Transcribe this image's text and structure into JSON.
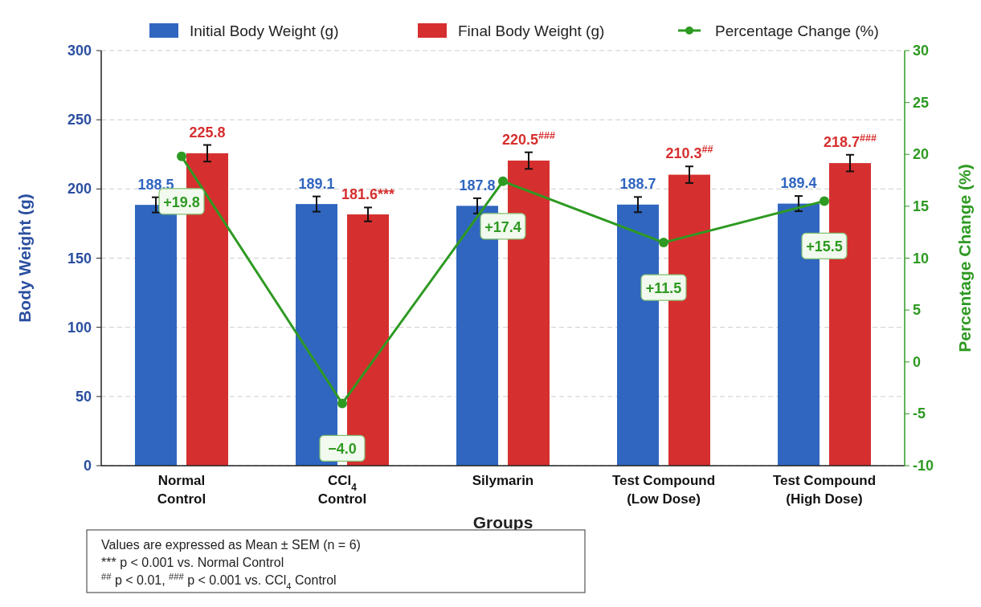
{
  "chart_data": {
    "type": "bar",
    "xlabel": "Groups",
    "ylabel": "Body Weight (g)",
    "y2label": "Percentage Change (%)",
    "categories": [
      "Normal\nControl",
      "CCl$_{4}$\nControl",
      "Silymarin",
      "Test Compound\n(Low Dose)",
      "Test Compound\n(High Dose)"
    ],
    "series": [
      {
        "name": "Initial Body Weight (g)",
        "color": "#3066c0",
        "values": [
          188.5,
          189.1,
          187.8,
          188.7,
          189.4
        ],
        "errors": [
          5.5,
          5.5,
          5.5,
          5.5,
          5.5
        ],
        "value_labels": [
          "188.5",
          "189.1",
          "187.8",
          "188.7",
          "189.4"
        ]
      },
      {
        "name": "Final Body Weight (g)",
        "color": "#d62f2f",
        "values": [
          225.8,
          181.6,
          220.5,
          210.3,
          218.7
        ],
        "errors": [
          6,
          5,
          6,
          6,
          6
        ],
        "value_labels": [
          "225.8",
          "181.6***",
          "220.5$^{###}$",
          "210.3$^{##}$",
          "218.7$^{###}$"
        ]
      },
      {
        "name": "Percentage Change (%)",
        "type": "line",
        "axis": "y2",
        "color": "#2e9a22",
        "marker": "circle",
        "values": [
          19.8,
          -4.0,
          17.4,
          11.5,
          15.5
        ],
        "value_labels": [
          "+19.8",
          "−4.0",
          "+17.4",
          "+11.5",
          "+15.5"
        ]
      }
    ],
    "ylim": [
      0,
      300
    ],
    "yticks": [
      0,
      50,
      100,
      150,
      200,
      250,
      300
    ],
    "y2lim": [
      -10,
      30
    ],
    "y2ticks": [
      -10,
      -5,
      0,
      5,
      10,
      15,
      20,
      25,
      30
    ],
    "grid": "y",
    "legend": "top",
    "annotations": [
      "Values are expressed as Mean ± SEM (n = 6)",
      "*** p < 0.001 vs. Normal Control",
      "$^{##}$  p < 0.01,  $^{###}$  p < 0.001 vs. CCl$_{4}$ Control"
    ]
  }
}
